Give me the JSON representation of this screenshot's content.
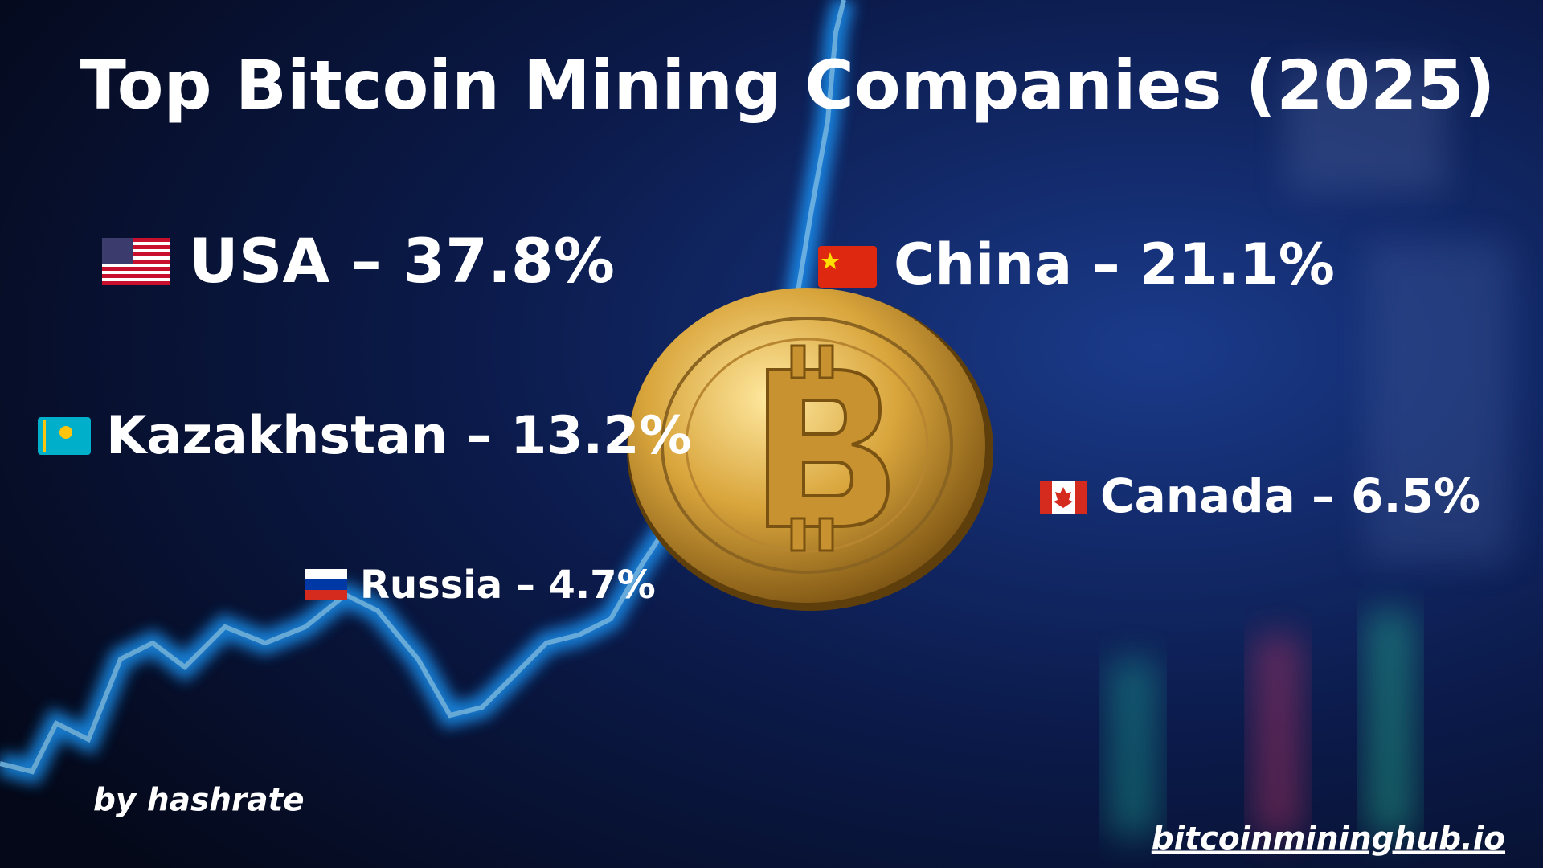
{
  "header": {
    "title": "Top Bitcoin Mining Companies (2025)"
  },
  "items": [
    {
      "label": "USA – 37.8%"
    },
    {
      "label": "China – 21.1%"
    },
    {
      "label": "Kazakhstan – 13.2%"
    },
    {
      "label": "Canada – 6.5%"
    },
    {
      "label": "Russia – 4.7%"
    }
  ],
  "footer": {
    "byline": "by hashrate",
    "website": "bitcoinmininghub.io"
  }
}
